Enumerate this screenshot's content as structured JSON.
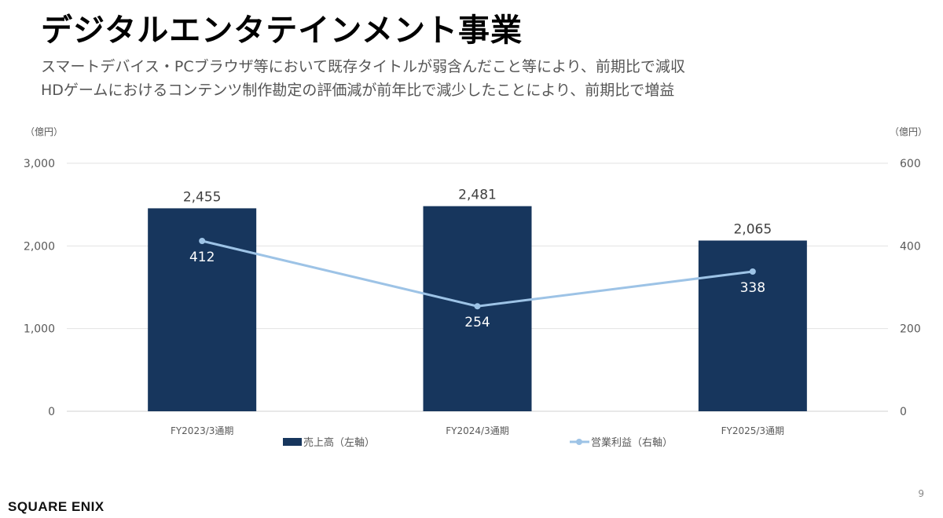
{
  "title": "デジタルエンタテインメント事業",
  "subtitles": [
    "スマートデバイス・PCブラウザ等において既存タイトルが弱含んだこと等により、前期比で減収",
    "HDゲームにおけるコンテンツ制作勘定の評価減が前年比で減少したことにより、前期比で増益"
  ],
  "page_number": "9",
  "logo_text": "SQUARE ENIX",
  "chart_data": {
    "type": "bar",
    "categories": [
      "FY2023/3通期",
      "FY2024/3通期",
      "FY2025/3通期"
    ],
    "series": [
      {
        "name": "売上高（左軸）",
        "type": "bar",
        "axis": "left",
        "values": [
          2455,
          2481,
          2065
        ],
        "labels": [
          "2,455",
          "2,481",
          "2,065"
        ],
        "color": "#17365d"
      },
      {
        "name": "営業利益（右軸）",
        "type": "line",
        "axis": "right",
        "values": [
          412,
          254,
          338
        ],
        "labels": [
          "412",
          "254",
          "338"
        ],
        "color": "#9dc3e6"
      }
    ],
    "left_axis": {
      "unit": "（億円）",
      "ylim": [
        0,
        3000
      ],
      "ticks": [
        "0",
        "1,000",
        "2,000",
        "3,000"
      ]
    },
    "right_axis": {
      "unit": "（億円）",
      "ylim": [
        0,
        600
      ],
      "ticks": [
        "0",
        "200",
        "400",
        "600"
      ]
    },
    "grid": true,
    "legend": "bottom"
  }
}
